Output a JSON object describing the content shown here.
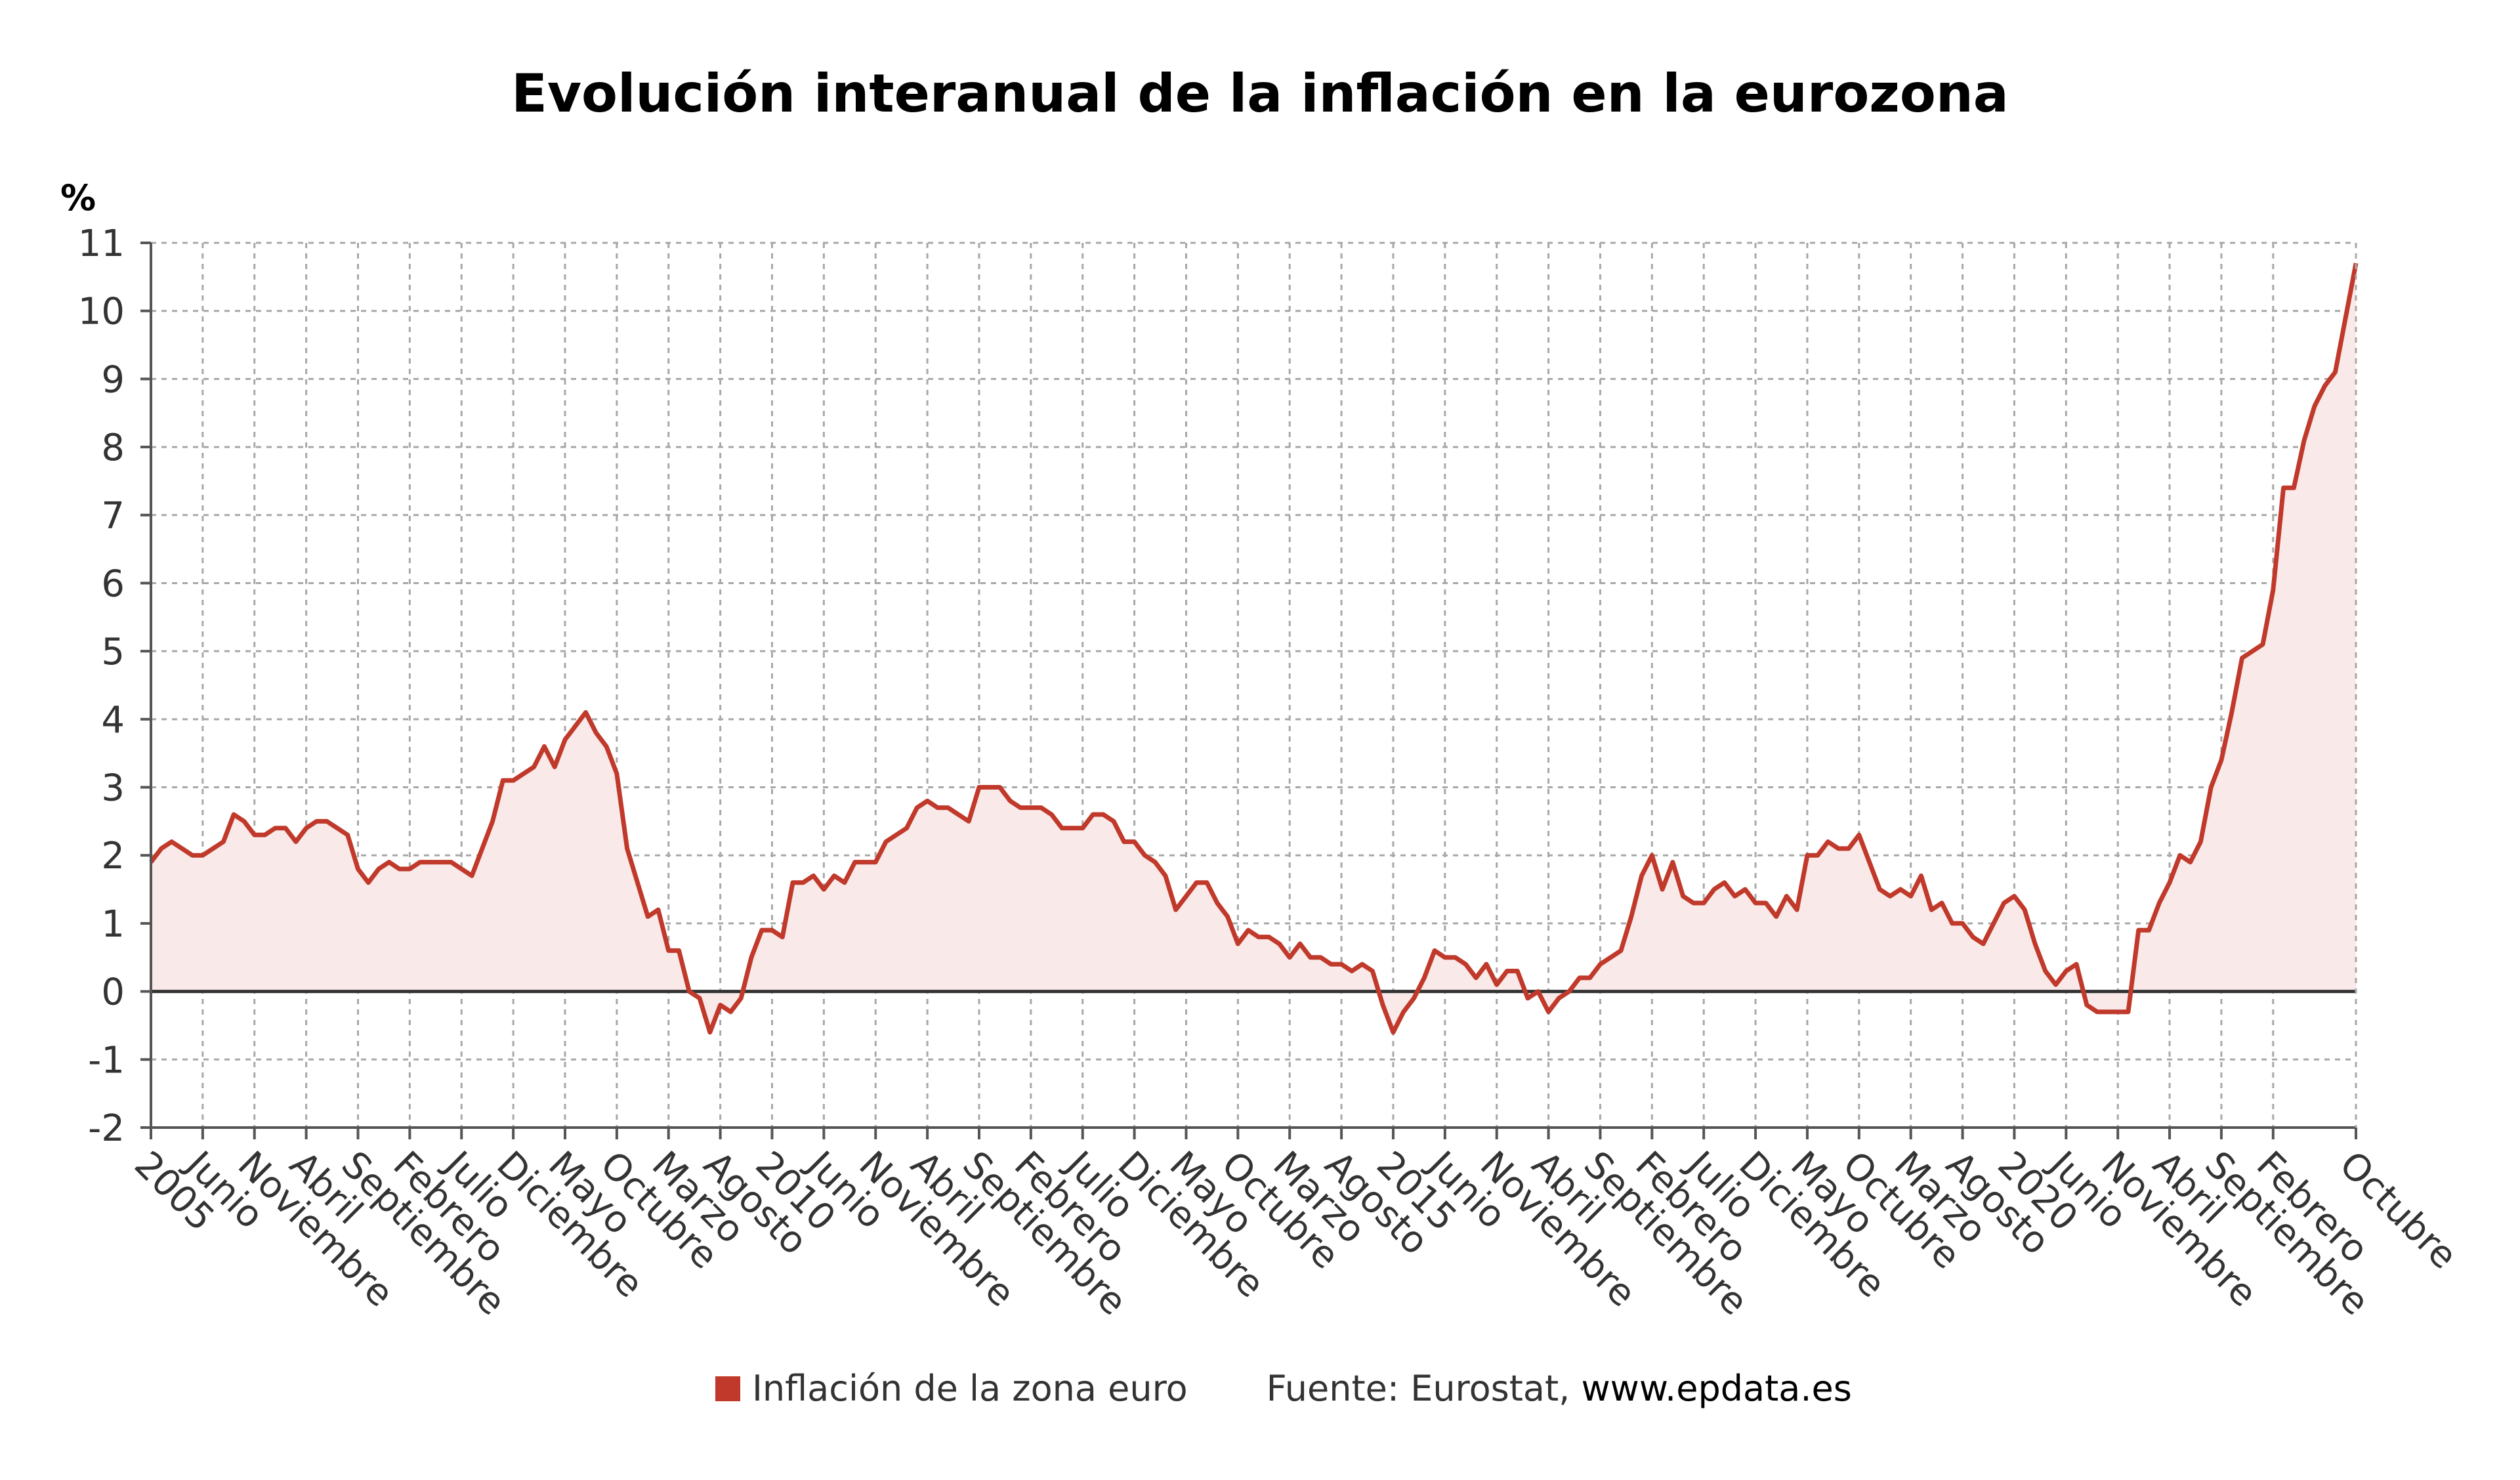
{
  "chart_data": {
    "type": "area",
    "title": "Evolución interanual de la inflación en la eurozona",
    "ylabel": "%",
    "ylim": [
      -2,
      11
    ],
    "yticks": [
      11,
      10,
      9,
      8,
      7,
      6,
      5,
      4,
      3,
      2,
      1,
      0,
      -1,
      -2
    ],
    "grid": true,
    "start": "2005-01",
    "end": "2022-10",
    "x_tick_labels": [
      {
        "label": "2005",
        "month": 0
      },
      {
        "label": "Junio",
        "month": 5
      },
      {
        "label": "Noviembre",
        "month": 10
      },
      {
        "label": "Abril",
        "month": 15
      },
      {
        "label": "Septiembre",
        "month": 20
      },
      {
        "label": "Febrero",
        "month": 25
      },
      {
        "label": "Julio",
        "month": 30
      },
      {
        "label": "Diciembre",
        "month": 35
      },
      {
        "label": "Mayo",
        "month": 40
      },
      {
        "label": "Octubre",
        "month": 45
      },
      {
        "label": "Marzo",
        "month": 50
      },
      {
        "label": "Agosto",
        "month": 55
      },
      {
        "label": "2010",
        "month": 60
      },
      {
        "label": "Junio",
        "month": 65
      },
      {
        "label": "Noviembre",
        "month": 70
      },
      {
        "label": "Abril",
        "month": 75
      },
      {
        "label": "Septiembre",
        "month": 80
      },
      {
        "label": "Febrero",
        "month": 85
      },
      {
        "label": "Julio",
        "month": 90
      },
      {
        "label": "Diciembre",
        "month": 95
      },
      {
        "label": "Mayo",
        "month": 100
      },
      {
        "label": "Octubre",
        "month": 105
      },
      {
        "label": "Marzo",
        "month": 110
      },
      {
        "label": "Agosto",
        "month": 115
      },
      {
        "label": "2015",
        "month": 120
      },
      {
        "label": "Junio",
        "month": 125
      },
      {
        "label": "Noviembre",
        "month": 130
      },
      {
        "label": "Abril",
        "month": 135
      },
      {
        "label": "Septiembre",
        "month": 140
      },
      {
        "label": "Febrero",
        "month": 145
      },
      {
        "label": "Julio",
        "month": 150
      },
      {
        "label": "Diciembre",
        "month": 155
      },
      {
        "label": "Mayo",
        "month": 160
      },
      {
        "label": "Octubre",
        "month": 165
      },
      {
        "label": "Marzo",
        "month": 170
      },
      {
        "label": "Agosto",
        "month": 175
      },
      {
        "label": "2020",
        "month": 180
      },
      {
        "label": "Junio",
        "month": 185
      },
      {
        "label": "Noviembre",
        "month": 190
      },
      {
        "label": "Abril",
        "month": 195
      },
      {
        "label": "Septiembre",
        "month": 200
      },
      {
        "label": "Febrero",
        "month": 205
      },
      {
        "label": "Octubre",
        "month": 213
      }
    ],
    "series": [
      {
        "name": "Inflación de la zona euro",
        "color": "#c0392b",
        "fill": "#f9e9e9",
        "values": [
          1.9,
          2.1,
          2.2,
          2.1,
          2.0,
          2.0,
          2.1,
          2.2,
          2.6,
          2.5,
          2.3,
          2.3,
          2.4,
          2.4,
          2.2,
          2.4,
          2.5,
          2.5,
          2.4,
          2.3,
          1.8,
          1.6,
          1.8,
          1.9,
          1.8,
          1.8,
          1.9,
          1.9,
          1.9,
          1.9,
          1.8,
          1.7,
          2.1,
          2.5,
          3.1,
          3.1,
          3.2,
          3.3,
          3.6,
          3.3,
          3.7,
          3.9,
          4.1,
          3.8,
          3.6,
          3.2,
          2.1,
          1.6,
          1.1,
          1.2,
          0.6,
          0.6,
          0.0,
          -0.1,
          -0.6,
          -0.2,
          -0.3,
          -0.1,
          0.5,
          0.9,
          0.9,
          0.8,
          1.6,
          1.6,
          1.7,
          1.5,
          1.7,
          1.6,
          1.9,
          1.9,
          1.9,
          2.2,
          2.3,
          2.4,
          2.7,
          2.8,
          2.7,
          2.7,
          2.6,
          2.5,
          3.0,
          3.0,
          3.0,
          2.8,
          2.7,
          2.7,
          2.7,
          2.6,
          2.4,
          2.4,
          2.4,
          2.6,
          2.6,
          2.5,
          2.2,
          2.2,
          2.0,
          1.9,
          1.7,
          1.2,
          1.4,
          1.6,
          1.6,
          1.3,
          1.1,
          0.7,
          0.9,
          0.8,
          0.8,
          0.7,
          0.5,
          0.7,
          0.5,
          0.5,
          0.4,
          0.4,
          0.3,
          0.4,
          0.3,
          -0.2,
          -0.6,
          -0.3,
          -0.1,
          0.2,
          0.6,
          0.5,
          0.5,
          0.4,
          0.2,
          0.4,
          0.1,
          0.3,
          0.3,
          -0.1,
          0.0,
          -0.3,
          -0.1,
          0.0,
          0.2,
          0.2,
          0.4,
          0.5,
          0.6,
          1.1,
          1.7,
          2.0,
          1.5,
          1.9,
          1.4,
          1.3,
          1.3,
          1.5,
          1.6,
          1.4,
          1.5,
          1.3,
          1.3,
          1.1,
          1.4,
          1.2,
          2.0,
          2.0,
          2.2,
          2.1,
          2.1,
          2.3,
          1.9,
          1.5,
          1.4,
          1.5,
          1.4,
          1.7,
          1.2,
          1.3,
          1.0,
          1.0,
          0.8,
          0.7,
          1.0,
          1.3,
          1.4,
          1.2,
          0.7,
          0.3,
          0.1,
          0.3,
          0.4,
          -0.2,
          -0.3,
          -0.3,
          -0.3,
          -0.3,
          0.9,
          0.9,
          1.3,
          1.6,
          2.0,
          1.9,
          2.2,
          3.0,
          3.4,
          4.1,
          4.9,
          5.0,
          5.1,
          5.9,
          7.4,
          7.4,
          8.1,
          8.6,
          8.9,
          9.1,
          9.9,
          10.7
        ]
      }
    ]
  },
  "legend": {
    "series_label": "Inflación de la zona euro",
    "source_prefix": "Fuente: Eurostat, ",
    "source_site": "www.epdata.es"
  }
}
